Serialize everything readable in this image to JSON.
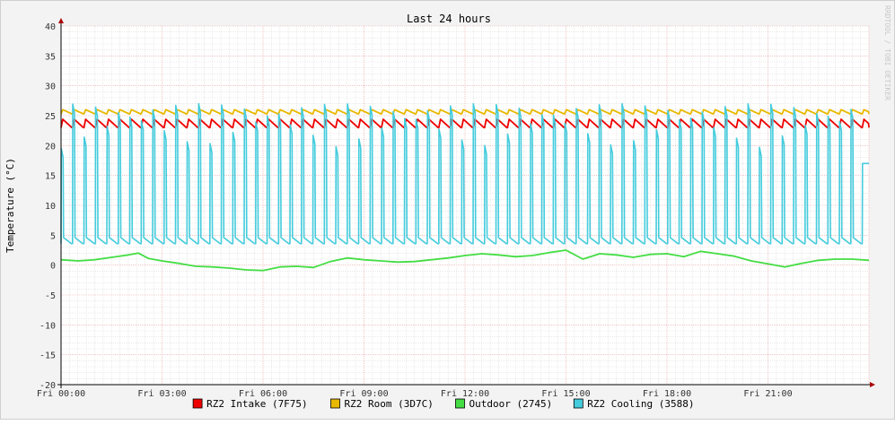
{
  "chart_data": {
    "type": "line",
    "title": "Last 24 hours",
    "ylabel": "Temperature (°C)",
    "watermark": "RRDTOOL / TOBI OETIKER",
    "ylim": [
      -20,
      40
    ],
    "y_ticks": [
      "40",
      "35",
      "30",
      "25",
      "20",
      "15",
      "10",
      "5",
      "0",
      "-5",
      "-10",
      "-15",
      "-20"
    ],
    "x_range_hours": [
      0,
      24
    ],
    "x_ticks": [
      {
        "label": "Fri 00:00",
        "hour": 0
      },
      {
        "label": "Fri 03:00",
        "hour": 3
      },
      {
        "label": "Fri 06:00",
        "hour": 6
      },
      {
        "label": "Fri 09:00",
        "hour": 9
      },
      {
        "label": "Fri 12:00",
        "hour": 12
      },
      {
        "label": "Fri 15:00",
        "hour": 15
      },
      {
        "label": "Fri 18:00",
        "hour": 18
      },
      {
        "label": "Fri 21:00",
        "hour": 21
      }
    ],
    "grid": true,
    "legend_position": "bottom",
    "series": [
      {
        "name": "RZ2 Intake (7F75)",
        "color": "#ee0000",
        "pattern": "oscillating",
        "period_hours": 0.34,
        "min": 23.0,
        "max": 24.4
      },
      {
        "name": "RZ2 Room (3D7C)",
        "color": "#e8b800",
        "pattern": "oscillating",
        "period_hours": 0.34,
        "min": 25.3,
        "max": 26.0
      },
      {
        "name": "Outdoor (2745)",
        "color": "#44dd44",
        "pattern": "smooth",
        "points": [
          [
            0.0,
            0.9
          ],
          [
            0.5,
            0.7
          ],
          [
            1.0,
            0.9
          ],
          [
            1.5,
            1.3
          ],
          [
            2.0,
            1.7
          ],
          [
            2.3,
            2.0
          ],
          [
            2.6,
            1.1
          ],
          [
            3.0,
            0.7
          ],
          [
            3.5,
            0.3
          ],
          [
            4.0,
            -0.2
          ],
          [
            4.5,
            -0.3
          ],
          [
            5.0,
            -0.5
          ],
          [
            5.5,
            -0.8
          ],
          [
            6.0,
            -0.9
          ],
          [
            6.5,
            -0.3
          ],
          [
            7.0,
            -0.2
          ],
          [
            7.5,
            -0.4
          ],
          [
            8.0,
            0.6
          ],
          [
            8.5,
            1.2
          ],
          [
            9.0,
            0.9
          ],
          [
            9.5,
            0.7
          ],
          [
            10.0,
            0.5
          ],
          [
            10.5,
            0.6
          ],
          [
            11.0,
            0.9
          ],
          [
            11.5,
            1.2
          ],
          [
            12.0,
            1.6
          ],
          [
            12.5,
            1.9
          ],
          [
            13.0,
            1.7
          ],
          [
            13.5,
            1.4
          ],
          [
            14.0,
            1.6
          ],
          [
            14.5,
            2.1
          ],
          [
            15.0,
            2.5
          ],
          [
            15.5,
            1.0
          ],
          [
            16.0,
            1.9
          ],
          [
            16.5,
            1.7
          ],
          [
            17.0,
            1.3
          ],
          [
            17.5,
            1.8
          ],
          [
            18.0,
            1.9
          ],
          [
            18.5,
            1.4
          ],
          [
            19.0,
            2.3
          ],
          [
            19.5,
            1.9
          ],
          [
            20.0,
            1.5
          ],
          [
            20.5,
            0.7
          ],
          [
            21.0,
            0.2
          ],
          [
            21.5,
            -0.3
          ],
          [
            22.0,
            0.3
          ],
          [
            22.5,
            0.8
          ],
          [
            23.0,
            1.0
          ],
          [
            23.5,
            1.0
          ],
          [
            24.0,
            0.8
          ]
        ]
      },
      {
        "name": "RZ2 Cooling (3588)",
        "color": "#44ccdd",
        "pattern": "spikes",
        "period_hours": 0.34,
        "baseline": 3.6,
        "peak_max": 27.0,
        "peak_min": 12.0,
        "end_value": 17.0
      }
    ]
  }
}
